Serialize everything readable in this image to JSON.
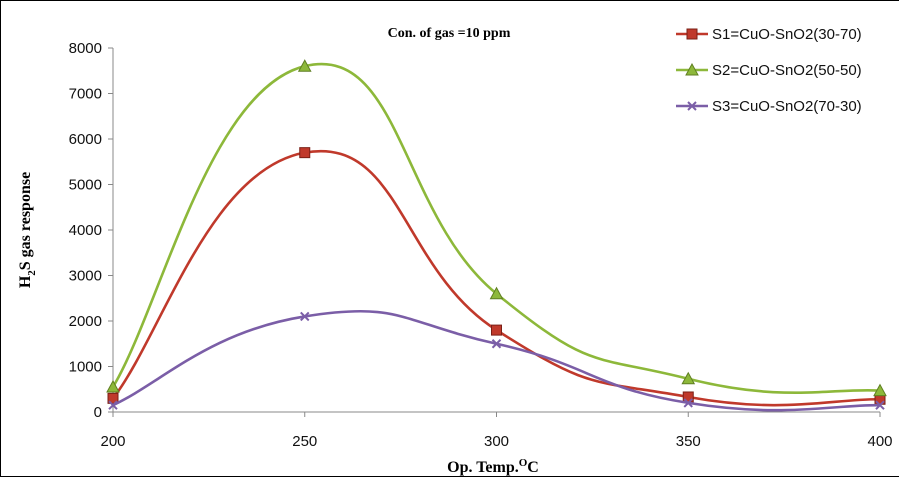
{
  "chart_data": {
    "type": "line",
    "title": "Con. of gas =10 ppm",
    "xlabel": {
      "main": "Op. Temp.",
      "sup": "O",
      "tail": "C"
    },
    "ylabel": {
      "pre": "H",
      "sub": "2",
      "post": "S gas response"
    },
    "x": [
      200,
      250,
      300,
      350,
      400
    ],
    "xlim": [
      200,
      400
    ],
    "ylim": [
      0,
      8000
    ],
    "xticks": [
      200,
      250,
      300,
      350,
      400
    ],
    "yticks": [
      0,
      1000,
      2000,
      3000,
      4000,
      5000,
      6000,
      7000,
      8000
    ],
    "grid": false,
    "legend_position": "top-right",
    "series": [
      {
        "name": "S1=CuO-SnO2(30-70)",
        "values": [
          300,
          5700,
          1800,
          330,
          280
        ],
        "color": "#c0392b",
        "marker": "square"
      },
      {
        "name": "S2=CuO-SnO2(50-50)",
        "values": [
          550,
          7600,
          2600,
          730,
          470
        ],
        "color": "#8db83a",
        "marker": "triangle"
      },
      {
        "name": "S3=CuO-SnO2(70-30)",
        "values": [
          150,
          2100,
          1500,
          200,
          150
        ],
        "color": "#7b5ea7",
        "marker": "x"
      }
    ]
  }
}
